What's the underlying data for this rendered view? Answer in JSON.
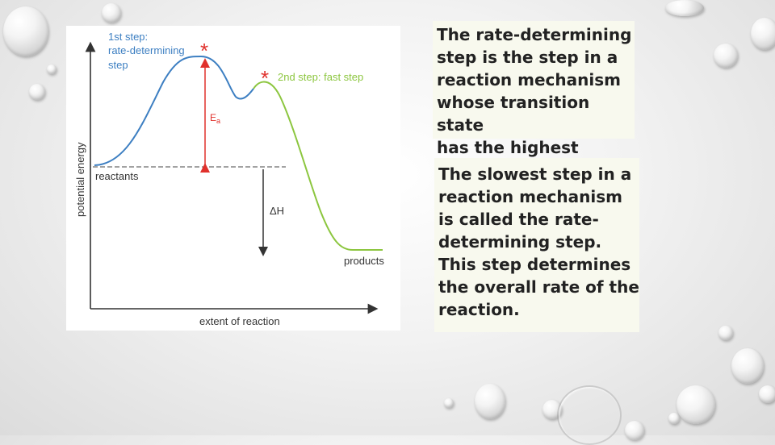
{
  "diagram": {
    "first_step_label_line1": "1st step:",
    "first_step_label_line2": "rate-determining",
    "first_step_label_line3": "step",
    "second_step_label": "2nd step: fast step",
    "activation_energy_label": "E",
    "activation_energy_subscript": "a",
    "reactants_label": "reactants",
    "products_label": "products",
    "enthalpy_label": "ΔH",
    "y_axis_label": "potential energy",
    "x_axis_label": "extent of reaction",
    "marker_symbol": "*",
    "colors": {
      "first_step_curve": "#3d7fc2",
      "second_step_curve": "#8cc63f",
      "marker": "#e0312c",
      "first_step_text": "#3d7fc2",
      "second_step_text": "#8cc63f",
      "axis": "#333333"
    }
  },
  "definition_box": {
    "line1": "The rate-determining",
    "line2": "step is the step in a",
    "line3": "reaction mechanism",
    "line4": "whose transition state",
    "line5": "has the highest energy."
  },
  "slowest_step_box": {
    "line1": "The slowest step in a",
    "line2": "reaction mechanism",
    "line3": "is called the rate-",
    "line4": "determining step.",
    "line5": "This step determines",
    "line6": "the overall rate of the",
    "line7": "reaction."
  }
}
